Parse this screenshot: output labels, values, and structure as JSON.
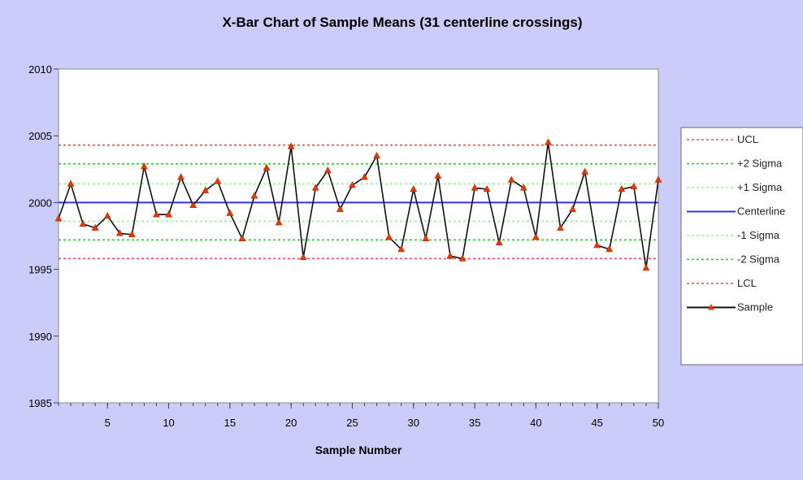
{
  "chart_data": {
    "type": "line",
    "title": "X-Bar Chart of Sample Means (31 centerline crossings)",
    "xlabel": "Sample Number",
    "ylabel": "",
    "xlim": [
      1,
      50
    ],
    "ylim": [
      1985,
      2010
    ],
    "x_ticks": [
      5,
      10,
      15,
      20,
      25,
      30,
      35,
      40,
      45,
      50
    ],
    "y_ticks": [
      1985,
      1990,
      1995,
      2000,
      2005,
      2010
    ],
    "grid": false,
    "legend_position": "right",
    "control_limits": [
      {
        "name": "UCL",
        "value": 2004.3,
        "color": "#e05050",
        "style": "dotted"
      },
      {
        "name": "+2 Sigma",
        "value": 2002.9,
        "color": "#22cc22",
        "style": "dotted"
      },
      {
        "name": "+1 Sigma",
        "value": 2001.4,
        "color": "#99ee99",
        "style": "dotted"
      },
      {
        "name": "Centerline",
        "value": 2000.0,
        "color": "#3333dd",
        "style": "solid"
      },
      {
        "name": "-1 Sigma",
        "value": 1998.6,
        "color": "#99ee99",
        "style": "dotted"
      },
      {
        "name": "-2 Sigma",
        "value": 1997.2,
        "color": "#22cc22",
        "style": "dotted"
      },
      {
        "name": "LCL",
        "value": 1995.8,
        "color": "#e05050",
        "style": "dotted"
      }
    ],
    "series": [
      {
        "name": "Sample",
        "color": "#111111",
        "marker_color": "#e03c00",
        "x": [
          1,
          2,
          3,
          4,
          5,
          6,
          7,
          8,
          9,
          10,
          11,
          12,
          13,
          14,
          15,
          16,
          17,
          18,
          19,
          20,
          21,
          22,
          23,
          24,
          25,
          26,
          27,
          28,
          29,
          30,
          31,
          32,
          33,
          34,
          35,
          36,
          37,
          38,
          39,
          40,
          41,
          42,
          43,
          44,
          45,
          46,
          47,
          48,
          49,
          50
        ],
        "values": [
          1998.8,
          2001.4,
          1998.4,
          1998.1,
          1999.0,
          1997.7,
          1997.6,
          2002.7,
          1999.1,
          1999.1,
          2001.9,
          1999.8,
          2000.9,
          2001.6,
          1999.2,
          1997.3,
          2000.5,
          2002.6,
          1998.5,
          2004.2,
          1995.9,
          2001.1,
          2002.4,
          1999.5,
          2001.3,
          2001.9,
          2003.5,
          1997.4,
          1996.5,
          2001.0,
          1997.3,
          2002.0,
          1996.0,
          1995.8,
          2001.1,
          2001.0,
          1997.0,
          2001.7,
          2001.1,
          1997.4,
          2004.5,
          1998.1,
          1999.5,
          2002.3,
          1996.8,
          1996.5,
          2001.0,
          2001.2,
          1995.1,
          2001.7
        ]
      }
    ]
  }
}
